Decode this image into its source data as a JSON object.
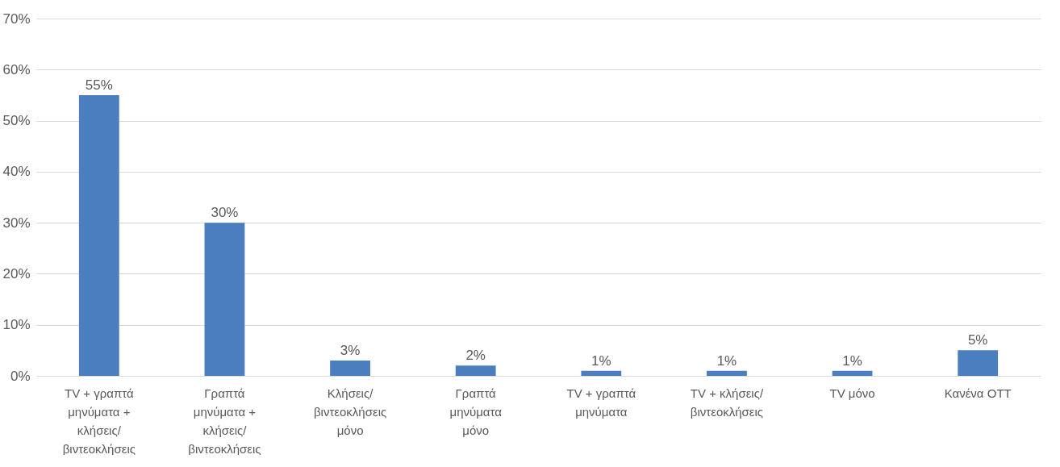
{
  "chart_data": {
    "type": "bar",
    "categories": [
      "TV + γραπτά μηνύματα + κλήσεις/ βιντεοκλήσεις",
      "Γραπτά μηνύματα + κλήσεις/ βιντεοκλήσεις",
      "Κλήσεις/ βιντεοκλήσεις μόνο",
      "Γραπτά μηνύματα μόνο",
      "TV + γραπτά μηνύματα",
      "TV + κλήσεις/ βιντεοκλήσεις",
      "TV μόνο",
      "Κανένα OTT",
      null
    ],
    "values": [
      55,
      30,
      3,
      2,
      1,
      1,
      1,
      5,
      null
    ],
    "value_labels": [
      "55%",
      "30%",
      "3%",
      "2%",
      "1%",
      "1%",
      "1%",
      "5%",
      null
    ],
    "color": "#4a7ebf",
    "ylim": [
      0,
      70
    ],
    "yticks": [
      {
        "value": 0,
        "label": "0%"
      },
      {
        "value": 10,
        "label": "10%"
      },
      {
        "value": 20,
        "label": "20%"
      },
      {
        "value": 30,
        "label": "30%"
      },
      {
        "value": 40,
        "label": "40%"
      },
      {
        "value": 50,
        "label": "50%"
      },
      {
        "value": 60,
        "label": "60%"
      },
      {
        "value": 70,
        "label": "70%"
      }
    ],
    "grid": "y"
  }
}
